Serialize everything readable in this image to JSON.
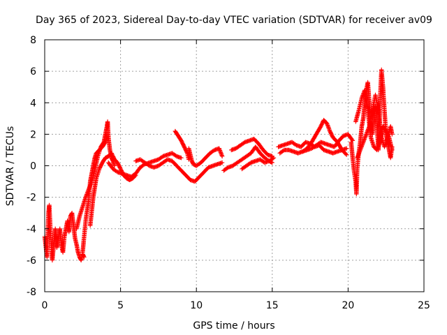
{
  "chart_data": {
    "type": "scatter",
    "title": "Day 365 of 2023, Sidereal Day-to-day VTEC variation (SDTVAR) for receiver av09",
    "xlabel": "GPS time / hours",
    "ylabel": "SDTVAR / TECUs",
    "xlim": [
      0,
      25
    ],
    "ylim": [
      -8,
      8
    ],
    "xticks": [
      0,
      5,
      10,
      15,
      20,
      25
    ],
    "yticks": [
      -8,
      -6,
      -4,
      -2,
      0,
      2,
      4,
      6,
      8
    ],
    "grid": true,
    "marker": "plus",
    "series": [
      {
        "name": "SDTVAR",
        "color": "#ff0000",
        "segments": [
          [
            [
              0.0,
              -4.5
            ],
            [
              0.15,
              -5.8
            ],
            [
              0.25,
              -3.0
            ],
            [
              0.3,
              -2.5
            ],
            [
              0.4,
              -4.5
            ],
            [
              0.5,
              -6.0
            ],
            [
              0.6,
              -5.0
            ],
            [
              0.7,
              -4.0
            ],
            [
              0.8,
              -5.2
            ],
            [
              0.9,
              -4.6
            ],
            [
              1.0,
              -4.0
            ],
            [
              1.1,
              -5.0
            ],
            [
              1.2,
              -5.5
            ],
            [
              1.3,
              -4.5
            ],
            [
              1.4,
              -4.0
            ],
            [
              1.5,
              -3.5
            ],
            [
              1.6,
              -4.2
            ],
            [
              1.7,
              -3.2
            ],
            [
              1.8,
              -3.0
            ],
            [
              1.9,
              -3.8
            ],
            [
              2.0,
              -4.6
            ],
            [
              2.1,
              -5.0
            ],
            [
              2.2,
              -5.5
            ],
            [
              2.3,
              -5.8
            ],
            [
              2.4,
              -6.0
            ],
            [
              2.5,
              -5.6
            ],
            [
              2.6,
              -5.8
            ]
          ],
          [
            [
              2.1,
              -4.0
            ],
            [
              2.3,
              -3.2
            ],
            [
              2.5,
              -2.6
            ],
            [
              2.7,
              -2.0
            ],
            [
              2.9,
              -1.5
            ],
            [
              3.1,
              -1.0
            ],
            [
              3.3,
              -0.3
            ],
            [
              3.5,
              0.6
            ],
            [
              3.7,
              1.2
            ],
            [
              3.9,
              1.5
            ],
            [
              4.0,
              2.0
            ],
            [
              4.1,
              2.5
            ],
            [
              4.15,
              2.8
            ],
            [
              4.2,
              1.8
            ],
            [
              4.3,
              1.0
            ],
            [
              4.4,
              0.5
            ],
            [
              4.5,
              0.3
            ],
            [
              4.6,
              0.0
            ]
          ],
          [
            [
              2.5,
              -5.5
            ],
            [
              2.6,
              -4.5
            ],
            [
              2.7,
              -3.5
            ],
            [
              2.8,
              -2.8
            ],
            [
              2.9,
              -2.2
            ],
            [
              3.0,
              -1.0
            ],
            [
              3.1,
              -0.5
            ],
            [
              3.2,
              0.0
            ],
            [
              3.3,
              0.5
            ],
            [
              3.4,
              0.8
            ],
            [
              3.6,
              1.0
            ],
            [
              3.8,
              1.2
            ],
            [
              4.0,
              1.5
            ],
            [
              4.1,
              2.0
            ]
          ],
          [
            [
              3.0,
              -3.8
            ],
            [
              3.2,
              -2.0
            ],
            [
              3.4,
              -0.8
            ],
            [
              3.6,
              -0.2
            ],
            [
              3.8,
              0.2
            ],
            [
              4.0,
              0.5
            ],
            [
              4.2,
              0.6
            ],
            [
              4.4,
              0.8
            ],
            [
              4.6,
              0.4
            ],
            [
              4.8,
              0.2
            ],
            [
              5.0,
              -0.2
            ],
            [
              5.2,
              -0.6
            ],
            [
              5.4,
              -0.8
            ],
            [
              5.6,
              -0.9
            ],
            [
              5.8,
              -0.8
            ],
            [
              6.0,
              -0.6
            ]
          ],
          [
            [
              4.2,
              0.2
            ],
            [
              4.5,
              -0.2
            ],
            [
              4.8,
              -0.4
            ],
            [
              5.1,
              -0.5
            ],
            [
              5.4,
              -0.6
            ],
            [
              5.7,
              -0.7
            ],
            [
              6.0,
              -0.5
            ],
            [
              6.3,
              -0.1
            ],
            [
              6.6,
              0.1
            ],
            [
              6.9,
              0.2
            ],
            [
              7.2,
              0.3
            ],
            [
              7.5,
              0.4
            ],
            [
              7.8,
              0.6
            ],
            [
              8.1,
              0.7
            ],
            [
              8.4,
              0.8
            ],
            [
              8.7,
              0.6
            ],
            [
              9.0,
              0.5
            ]
          ],
          [
            [
              6.0,
              0.3
            ],
            [
              6.3,
              0.4
            ],
            [
              6.6,
              0.2
            ],
            [
              6.9,
              0.0
            ],
            [
              7.2,
              -0.1
            ],
            [
              7.5,
              0.0
            ],
            [
              7.8,
              0.2
            ],
            [
              8.1,
              0.4
            ],
            [
              8.4,
              0.3
            ],
            [
              8.7,
              0.0
            ],
            [
              9.0,
              -0.3
            ],
            [
              9.3,
              -0.6
            ],
            [
              9.6,
              -0.9
            ],
            [
              9.9,
              -1.0
            ],
            [
              10.2,
              -0.7
            ],
            [
              10.5,
              -0.4
            ],
            [
              10.8,
              -0.1
            ],
            [
              11.1,
              0.0
            ],
            [
              11.4,
              0.1
            ],
            [
              11.7,
              0.2
            ]
          ],
          [
            [
              8.6,
              2.2
            ],
            [
              8.8,
              1.9
            ],
            [
              9.0,
              1.6
            ],
            [
              9.2,
              1.2
            ],
            [
              9.4,
              0.8
            ],
            [
              9.5,
              0.4
            ]
          ],
          [
            [
              9.5,
              1.1
            ],
            [
              9.6,
              0.7
            ],
            [
              9.7,
              0.3
            ],
            [
              9.8,
              0.1
            ],
            [
              10.0,
              0.0
            ],
            [
              10.3,
              0.2
            ],
            [
              10.6,
              0.5
            ],
            [
              10.9,
              0.8
            ],
            [
              11.2,
              1.0
            ],
            [
              11.5,
              1.1
            ],
            [
              11.7,
              0.6
            ]
          ],
          [
            [
              11.8,
              -0.3
            ],
            [
              12.1,
              -0.1
            ],
            [
              12.4,
              0.0
            ],
            [
              12.7,
              0.2
            ],
            [
              13.0,
              0.4
            ],
            [
              13.3,
              0.6
            ],
            [
              13.6,
              0.8
            ],
            [
              13.9,
              1.2
            ],
            [
              14.2,
              0.8
            ],
            [
              14.5,
              0.5
            ],
            [
              14.8,
              0.3
            ],
            [
              15.0,
              0.2
            ]
          ],
          [
            [
              12.3,
              1.0
            ],
            [
              12.6,
              1.1
            ],
            [
              12.9,
              1.3
            ],
            [
              13.2,
              1.5
            ],
            [
              13.5,
              1.6
            ],
            [
              13.8,
              1.7
            ],
            [
              14.1,
              1.4
            ],
            [
              14.4,
              1.0
            ],
            [
              14.7,
              0.7
            ],
            [
              15.0,
              0.6
            ]
          ],
          [
            [
              13.0,
              -0.2
            ],
            [
              13.3,
              0.0
            ],
            [
              13.6,
              0.2
            ],
            [
              13.9,
              0.3
            ],
            [
              14.2,
              0.4
            ],
            [
              14.5,
              0.2
            ],
            [
              14.8,
              0.3
            ],
            [
              15.1,
              0.5
            ]
          ],
          [
            [
              15.4,
              1.2
            ],
            [
              15.7,
              1.3
            ],
            [
              16.0,
              1.4
            ],
            [
              16.3,
              1.5
            ],
            [
              16.6,
              1.3
            ],
            [
              16.9,
              1.2
            ],
            [
              17.2,
              1.5
            ],
            [
              17.5,
              1.4
            ],
            [
              17.8,
              1.2
            ],
            [
              18.1,
              1.3
            ],
            [
              18.4,
              1.0
            ],
            [
              18.7,
              0.9
            ],
            [
              19.0,
              0.8
            ],
            [
              19.3,
              0.9
            ],
            [
              19.6,
              1.0
            ],
            [
              19.9,
              1.1
            ]
          ],
          [
            [
              15.5,
              0.8
            ],
            [
              15.8,
              1.0
            ],
            [
              16.1,
              1.0
            ],
            [
              16.4,
              0.9
            ],
            [
              16.7,
              0.8
            ],
            [
              17.0,
              0.9
            ],
            [
              17.3,
              1.1
            ],
            [
              17.6,
              1.5
            ],
            [
              17.9,
              2.0
            ],
            [
              18.2,
              2.5
            ],
            [
              18.4,
              2.9
            ],
            [
              18.6,
              2.7
            ],
            [
              18.8,
              2.2
            ],
            [
              19.0,
              1.8
            ],
            [
              19.3,
              1.5
            ],
            [
              19.6,
              1.0
            ],
            [
              19.9,
              0.7
            ]
          ],
          [
            [
              17.0,
              0.9
            ],
            [
              17.3,
              1.0
            ],
            [
              17.6,
              1.1
            ],
            [
              17.9,
              1.3
            ],
            [
              18.2,
              1.5
            ],
            [
              18.5,
              1.4
            ],
            [
              18.8,
              1.3
            ],
            [
              19.1,
              1.2
            ],
            [
              19.4,
              1.6
            ],
            [
              19.7,
              1.9
            ],
            [
              20.0,
              2.0
            ],
            [
              20.3,
              1.6
            ]
          ],
          [
            [
              20.2,
              1.5
            ],
            [
              20.3,
              0.5
            ],
            [
              20.4,
              -0.4
            ],
            [
              20.5,
              -1.0
            ],
            [
              20.55,
              -1.8
            ],
            [
              20.6,
              -0.2
            ],
            [
              20.7,
              0.8
            ],
            [
              20.8,
              1.5
            ],
            [
              20.9,
              2.5
            ],
            [
              21.0,
              3.0
            ],
            [
              21.1,
              4.0
            ],
            [
              21.2,
              4.8
            ],
            [
              21.3,
              5.3
            ],
            [
              21.4,
              4.0
            ],
            [
              21.5,
              2.5
            ],
            [
              21.6,
              2.0
            ],
            [
              21.7,
              3.0
            ],
            [
              21.8,
              3.8
            ],
            [
              21.9,
              2.5
            ],
            [
              22.0,
              1.0
            ],
            [
              22.05,
              2.0
            ],
            [
              22.1,
              4.0
            ],
            [
              22.2,
              6.1
            ],
            [
              22.3,
              5.0
            ],
            [
              22.4,
              3.5
            ],
            [
              22.5,
              2.0
            ],
            [
              22.6,
              1.5
            ],
            [
              22.7,
              1.0
            ],
            [
              22.8,
              0.5
            ],
            [
              22.9,
              1.2
            ]
          ],
          [
            [
              20.5,
              2.8
            ],
            [
              20.7,
              3.5
            ],
            [
              20.9,
              4.3
            ],
            [
              21.1,
              4.8
            ],
            [
              21.3,
              3.5
            ],
            [
              21.5,
              1.8
            ],
            [
              21.7,
              1.2
            ],
            [
              21.9,
              1.0
            ],
            [
              22.1,
              1.5
            ],
            [
              22.3,
              2.5
            ],
            [
              22.5,
              2.2
            ],
            [
              22.7,
              1.8
            ],
            [
              22.9,
              1.0
            ]
          ],
          [
            [
              20.6,
              0.5
            ],
            [
              20.8,
              1.0
            ],
            [
              21.0,
              1.5
            ],
            [
              21.2,
              2.0
            ],
            [
              21.4,
              2.5
            ],
            [
              21.6,
              3.5
            ],
            [
              21.8,
              4.5
            ],
            [
              22.0,
              3.5
            ],
            [
              22.2,
              1.8
            ],
            [
              22.4,
              1.2
            ],
            [
              22.6,
              1.8
            ],
            [
              22.8,
              2.5
            ],
            [
              22.9,
              2.0
            ]
          ]
        ]
      }
    ]
  }
}
